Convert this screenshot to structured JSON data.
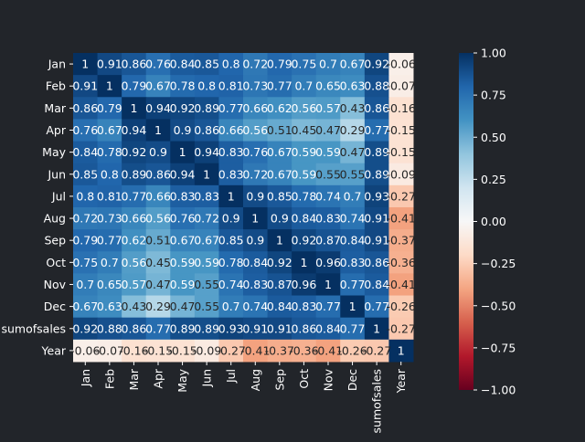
{
  "colors": {
    "background": "#22252a",
    "text": "#ffffff",
    "cell_text_dark": "#262626",
    "colormap": "RdBu"
  },
  "chart_data": {
    "type": "heatmap",
    "title": "",
    "xlabel": "",
    "ylabel": "",
    "row_labels": [
      "Jan",
      "Feb",
      "Mar",
      "Apr",
      "May",
      "Jun",
      "Jul",
      "Aug",
      "Sep",
      "Oct",
      "Nov",
      "Dec",
      "sumofsales",
      "Year"
    ],
    "col_labels": [
      "Jan",
      "Feb",
      "Mar",
      "Apr",
      "May",
      "Jun",
      "Jul",
      "Aug",
      "Sep",
      "Oct",
      "Nov",
      "Dec",
      "sumofsales",
      "Year"
    ],
    "values": [
      [
        1,
        0.91,
        0.86,
        0.76,
        0.84,
        0.85,
        0.8,
        0.72,
        0.79,
        0.75,
        0.7,
        0.67,
        0.92,
        -0.06
      ],
      [
        0.91,
        1,
        0.79,
        0.67,
        0.78,
        0.8,
        0.81,
        0.73,
        0.77,
        0.7,
        0.65,
        0.63,
        0.88,
        -0.07
      ],
      [
        0.86,
        0.79,
        1,
        0.94,
        0.92,
        0.89,
        0.77,
        0.66,
        0.62,
        0.56,
        0.57,
        0.43,
        0.86,
        -0.16
      ],
      [
        0.76,
        0.67,
        0.94,
        1,
        0.9,
        0.86,
        0.66,
        0.56,
        0.51,
        0.45,
        0.47,
        0.29,
        0.77,
        -0.15
      ],
      [
        0.84,
        0.78,
        0.92,
        0.9,
        1,
        0.94,
        0.83,
        0.76,
        0.67,
        0.59,
        0.59,
        0.47,
        0.89,
        -0.15
      ],
      [
        0.85,
        0.8,
        0.89,
        0.86,
        0.94,
        1,
        0.83,
        0.72,
        0.67,
        0.59,
        0.55,
        0.55,
        0.89,
        -0.09
      ],
      [
        0.8,
        0.81,
        0.77,
        0.66,
        0.83,
        0.83,
        1,
        0.9,
        0.85,
        0.78,
        0.74,
        0.7,
        0.93,
        -0.27
      ],
      [
        0.72,
        0.73,
        0.66,
        0.56,
        0.76,
        0.72,
        0.9,
        1,
        0.9,
        0.84,
        0.83,
        0.74,
        0.91,
        -0.41
      ],
      [
        0.79,
        0.77,
        0.62,
        0.51,
        0.67,
        0.67,
        0.85,
        0.9,
        1,
        0.92,
        0.87,
        0.84,
        0.91,
        -0.37
      ],
      [
        0.75,
        0.7,
        0.56,
        0.45,
        0.59,
        0.59,
        0.78,
        0.84,
        0.92,
        1,
        0.96,
        0.83,
        0.86,
        -0.36
      ],
      [
        0.7,
        0.65,
        0.57,
        0.47,
        0.59,
        0.55,
        0.74,
        0.83,
        0.87,
        0.96,
        1,
        0.77,
        0.84,
        -0.41
      ],
      [
        0.67,
        0.63,
        0.43,
        0.29,
        0.47,
        0.55,
        0.7,
        0.74,
        0.84,
        0.83,
        0.77,
        1,
        0.77,
        -0.26
      ],
      [
        0.92,
        0.88,
        0.86,
        0.77,
        0.89,
        0.89,
        0.93,
        0.91,
        0.91,
        0.86,
        0.84,
        0.77,
        1,
        -0.27
      ],
      [
        -0.06,
        -0.07,
        -0.16,
        -0.15,
        -0.15,
        -0.09,
        -0.27,
        -0.41,
        -0.37,
        -0.36,
        -0.41,
        -0.26,
        -0.27,
        1
      ]
    ],
    "value_labels": [
      [
        "1",
        "0.91",
        "0.86",
        "0.76",
        "0.84",
        "0.85",
        "0.8",
        "0.72",
        "0.79",
        "0.75",
        "0.7",
        "0.67",
        "0.92",
        "-0.06"
      ],
      [
        "0.91",
        "1",
        "0.79",
        "0.67",
        "0.78",
        "0.8",
        "0.81",
        "0.73",
        "0.77",
        "0.7",
        "0.65",
        "0.63",
        "0.88",
        "-0.07"
      ],
      [
        "0.86",
        "0.79",
        "1",
        "0.94",
        "0.92",
        "0.89",
        "0.77",
        "0.66",
        "0.62",
        "0.56",
        "0.57",
        "0.43",
        "0.86",
        "-0.16"
      ],
      [
        "0.76",
        "0.67",
        "0.94",
        "1",
        "0.9",
        "0.86",
        "0.66",
        "0.56",
        "0.51",
        "0.45",
        "0.47",
        "0.29",
        "0.77",
        "-0.15"
      ],
      [
        "0.84",
        "0.78",
        "0.92",
        "0.9",
        "1",
        "0.94",
        "0.83",
        "0.76",
        "0.67",
        "0.59",
        "0.59",
        "0.47",
        "0.89",
        "-0.15"
      ],
      [
        "0.85",
        "0.8",
        "0.89",
        "0.86",
        "0.94",
        "1",
        "0.83",
        "0.72",
        "0.67",
        "0.59",
        "0.55",
        "0.55",
        "0.89",
        "-0.09"
      ],
      [
        "0.8",
        "0.81",
        "0.77",
        "0.66",
        "0.83",
        "0.83",
        "1",
        "0.9",
        "0.85",
        "0.78",
        "0.74",
        "0.7",
        "0.93",
        "-0.27"
      ],
      [
        "0.72",
        "0.73",
        "0.66",
        "0.56",
        "0.76",
        "0.72",
        "0.9",
        "1",
        "0.9",
        "0.84",
        "0.83",
        "0.74",
        "0.91",
        "-0.41"
      ],
      [
        "0.79",
        "0.77",
        "0.62",
        "0.51",
        "0.67",
        "0.67",
        "0.85",
        "0.9",
        "1",
        "0.92",
        "0.87",
        "0.84",
        "0.91",
        "-0.37"
      ],
      [
        "0.75",
        "0.7",
        "0.56",
        "0.45",
        "0.59",
        "0.59",
        "0.78",
        "0.84",
        "0.92",
        "1",
        "0.96",
        "0.83",
        "0.86",
        "-0.36"
      ],
      [
        "0.7",
        "0.65",
        "0.57",
        "0.47",
        "0.59",
        "0.55",
        "0.74",
        "0.83",
        "0.87",
        "0.96",
        "1",
        "0.77",
        "0.84",
        "-0.41"
      ],
      [
        "0.67",
        "0.63",
        "0.43",
        "0.29",
        "0.47",
        "0.55",
        "0.7",
        "0.74",
        "0.84",
        "0.83",
        "0.77",
        "1",
        "0.77",
        "-0.26"
      ],
      [
        "0.92",
        "0.88",
        "0.86",
        "0.77",
        "0.89",
        "0.89",
        "0.93",
        "0.91",
        "0.91",
        "0.86",
        "0.84",
        "0.77",
        "1",
        "-0.27"
      ],
      [
        "-0.06",
        "-0.07",
        "-0.16",
        "-0.15",
        "-0.15",
        "-0.09",
        "-0.27",
        "-0.41",
        "-0.37",
        "-0.36",
        "-0.41",
        "-0.26",
        "-0.27",
        "1"
      ]
    ],
    "colorbar": {
      "vmin": -1.0,
      "vmax": 1.0,
      "ticks": [
        1.0,
        0.75,
        0.5,
        0.25,
        0.0,
        -0.25,
        -0.5,
        -0.75,
        -1.0
      ],
      "tick_labels": [
        "1.00",
        "0.75",
        "0.50",
        "0.25",
        "0.00",
        "−0.25",
        "−0.50",
        "−0.75",
        "−1.00"
      ]
    },
    "grid": false,
    "legend": "colorbar-right"
  }
}
